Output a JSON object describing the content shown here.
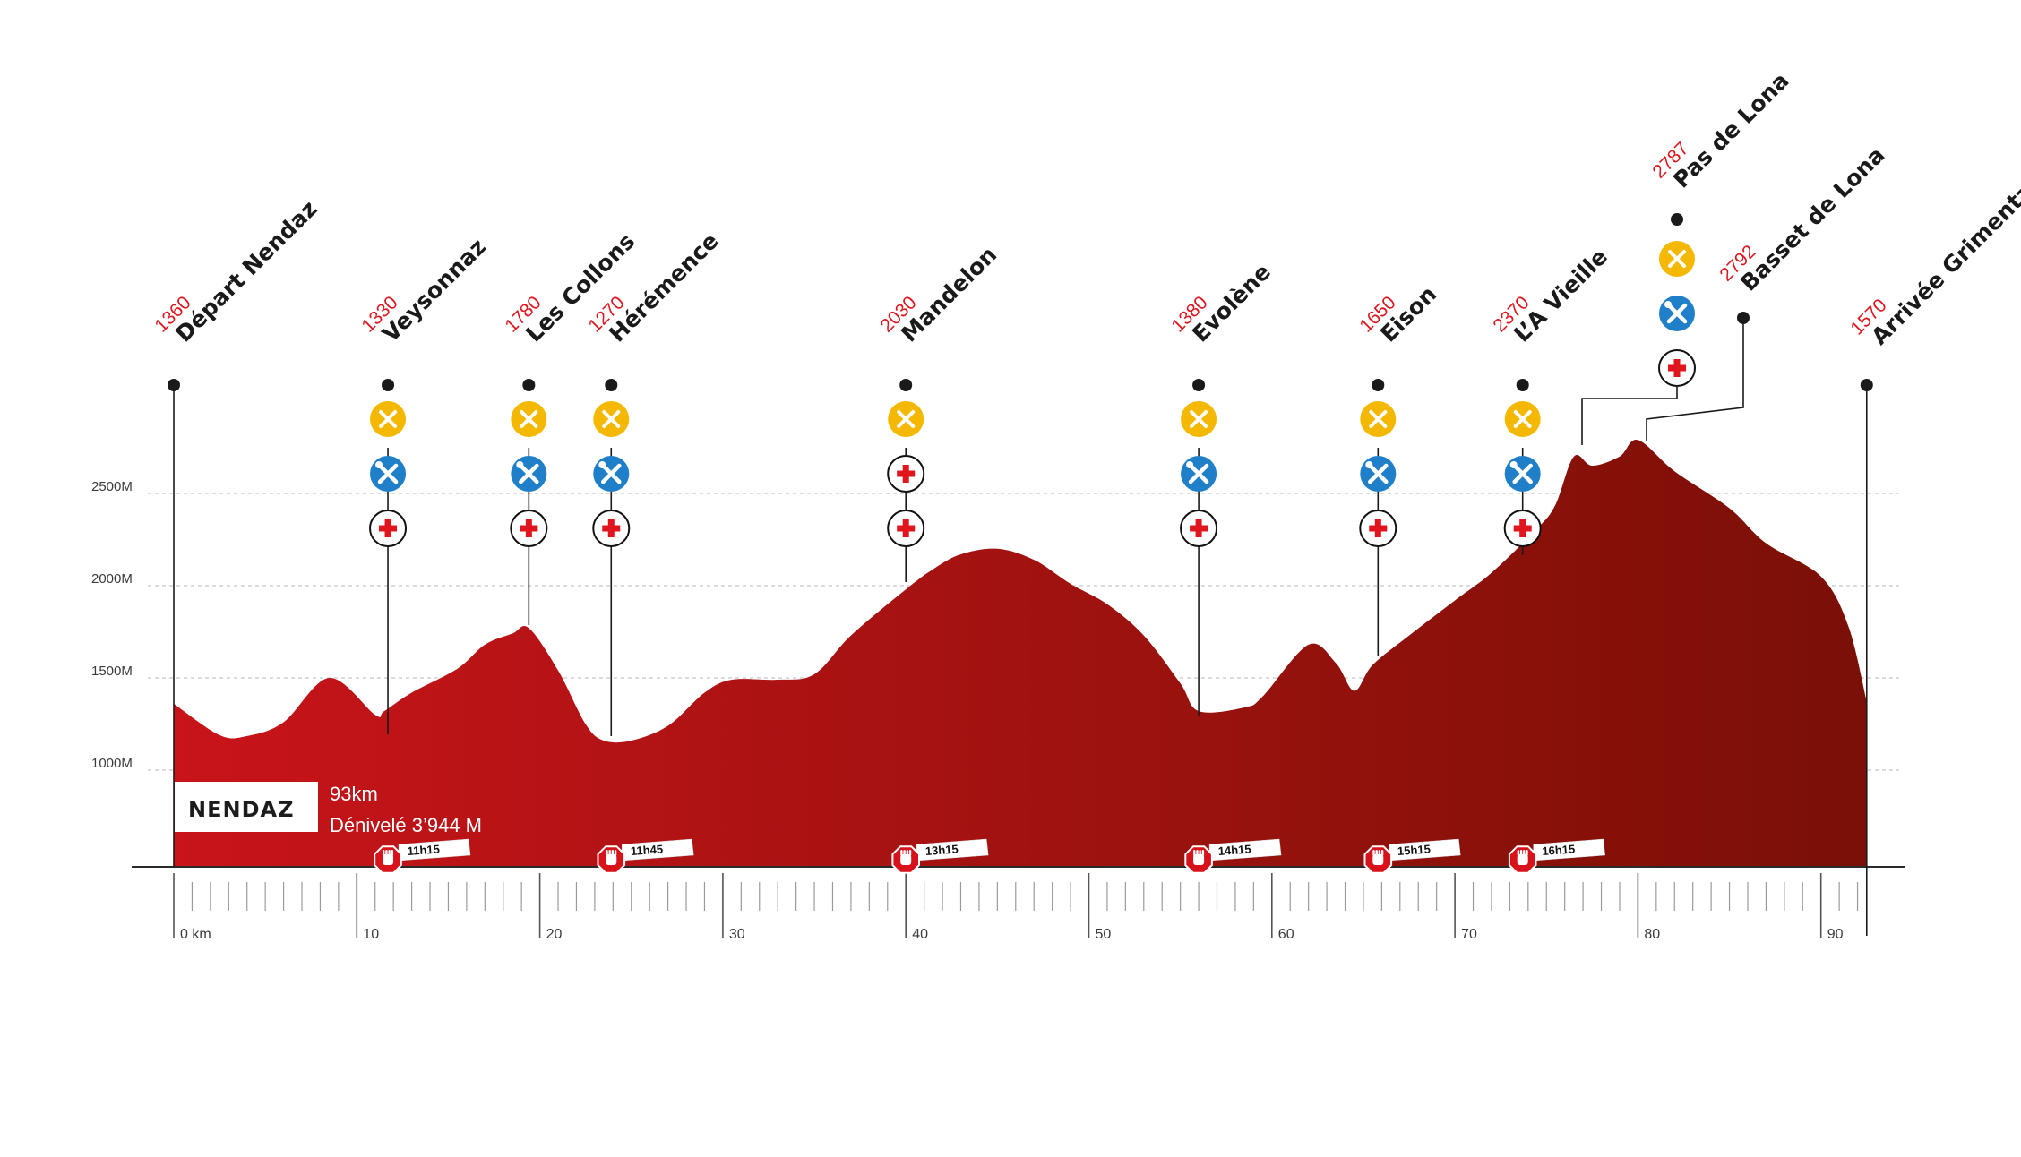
{
  "race": {
    "name": "NENDAZ",
    "distance": "93km",
    "elevation_gain": "Dénivelé 3’944 M"
  },
  "colors": {
    "profile_start": "#c8141a",
    "profile_end": "#7a1006",
    "altitude_text": "#e0151d",
    "refreshment": "#f5b800",
    "mechanical": "#1f7fc9",
    "medical": "#e0151d",
    "barrier": "#d8121b"
  },
  "chart_data": {
    "type": "area",
    "xlabel": "",
    "ylabel": "",
    "x_ticks": [
      "0 km",
      "10",
      "20",
      "30",
      "40",
      "50",
      "60",
      "70",
      "80",
      "90"
    ],
    "y_ticks": [
      "1000M",
      "1500M",
      "2000M",
      "2500M"
    ],
    "xlim": [
      0,
      92.5
    ],
    "ylim": [
      650,
      2850
    ],
    "grid": "horizontal dashed",
    "profile": [
      [
        0,
        1360
      ],
      [
        2.5,
        1190
      ],
      [
        4,
        1185
      ],
      [
        6,
        1260
      ],
      [
        8.5,
        1500
      ],
      [
        11,
        1300
      ],
      [
        11.5,
        1320
      ],
      [
        13,
        1420
      ],
      [
        15.5,
        1550
      ],
      [
        17,
        1680
      ],
      [
        18.5,
        1740
      ],
      [
        19.4,
        1770
      ],
      [
        21,
        1540
      ],
      [
        22.5,
        1250
      ],
      [
        23.5,
        1160
      ],
      [
        25,
        1160
      ],
      [
        27,
        1240
      ],
      [
        29,
        1420
      ],
      [
        30.5,
        1490
      ],
      [
        33,
        1490
      ],
      [
        35,
        1520
      ],
      [
        37,
        1730
      ],
      [
        40,
        1980
      ],
      [
        41.5,
        2090
      ],
      [
        43,
        2170
      ],
      [
        45,
        2200
      ],
      [
        47,
        2140
      ],
      [
        49,
        2010
      ],
      [
        51,
        1900
      ],
      [
        53,
        1730
      ],
      [
        55,
        1470
      ],
      [
        56,
        1320
      ],
      [
        58.5,
        1340
      ],
      [
        59.5,
        1400
      ],
      [
        62,
        1680
      ],
      [
        63.5,
        1580
      ],
      [
        64.5,
        1430
      ],
      [
        65.5,
        1570
      ],
      [
        67.5,
        1730
      ],
      [
        70,
        1920
      ],
      [
        72,
        2070
      ],
      [
        74.5,
        2310
      ],
      [
        75.5,
        2440
      ],
      [
        76.5,
        2700
      ],
      [
        77.5,
        2650
      ],
      [
        79,
        2700
      ],
      [
        80,
        2790
      ],
      [
        82,
        2620
      ],
      [
        85,
        2420
      ],
      [
        87,
        2230
      ],
      [
        90,
        2050
      ],
      [
        91.5,
        1780
      ],
      [
        92.5,
        1370
      ]
    ],
    "points": [
      {
        "name": "Départ Nendaz",
        "alt": "1360",
        "km": 0,
        "services": [],
        "cutoff": ""
      },
      {
        "name": "Veysonnaz",
        "alt": "1330",
        "km": 11.7,
        "services": [
          "refreshment",
          "mechanical",
          "medical"
        ],
        "cutoff": "11h15"
      },
      {
        "name": "Les Collons",
        "alt": "1780",
        "km": 19.4,
        "services": [
          "refreshment",
          "mechanical",
          "medical"
        ],
        "cutoff": ""
      },
      {
        "name": "Hérémence",
        "alt": "1270",
        "km": 23.9,
        "services": [
          "refreshment",
          "mechanical",
          "medical"
        ],
        "cutoff": "11h45"
      },
      {
        "name": "Mandelon",
        "alt": "2030",
        "km": 40,
        "services": [
          "refreshment",
          "medical"
        ],
        "cutoff": "13h15"
      },
      {
        "name": "Evolène",
        "alt": "1380",
        "km": 56,
        "services": [
          "refreshment",
          "mechanical",
          "medical"
        ],
        "cutoff": "14h15"
      },
      {
        "name": "Eison",
        "alt": "1650",
        "km": 65.8,
        "services": [
          "refreshment",
          "mechanical",
          "medical"
        ],
        "cutoff": "15h15"
      },
      {
        "name": "L’A Vieille",
        "alt": "2370",
        "km": 73.7,
        "services": [
          "refreshment",
          "mechanical",
          "medical"
        ],
        "cutoff": "16h15"
      },
      {
        "name": "Pas de Lona",
        "alt": "2787",
        "km": 76.5,
        "services": [
          "refreshment",
          "mechanical",
          "medical"
        ],
        "cutoff": ""
      },
      {
        "name": "Basset de Lona",
        "alt": "2792",
        "km": 80,
        "services": [],
        "cutoff": ""
      },
      {
        "name": "Arrivée Grimentz",
        "alt": "1570",
        "km": 92.5,
        "services": [],
        "cutoff": ""
      }
    ]
  }
}
